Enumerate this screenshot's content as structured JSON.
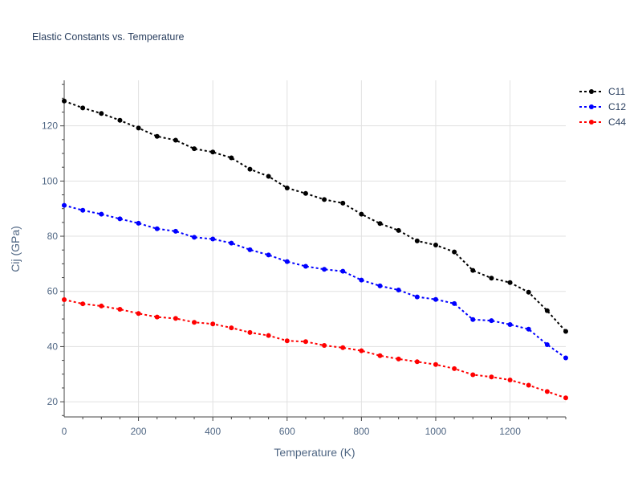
{
  "chart_data": {
    "type": "line",
    "title": "Elastic Constants vs. Temperature",
    "xlabel": "Temperature (K)",
    "ylabel": "Cij (GPa)",
    "xlim": [
      0,
      1350
    ],
    "ylim": [
      14.5,
      136.5
    ],
    "xticks": [
      0,
      200,
      400,
      600,
      800,
      1000,
      1200
    ],
    "yticks": [
      20,
      40,
      60,
      80,
      100,
      120
    ],
    "grid": true,
    "legend_position": "top-right",
    "series": [
      {
        "name": "C11",
        "color": "#000000",
        "x": [
          0,
          50,
          100,
          150,
          200,
          250,
          300,
          350,
          400,
          450,
          500,
          550,
          600,
          650,
          700,
          750,
          800,
          850,
          900,
          950,
          1000,
          1050,
          1100,
          1150,
          1200,
          1250,
          1300,
          1350
        ],
        "y": [
          129.0,
          126.5,
          124.5,
          122.0,
          119.2,
          116.2,
          114.8,
          111.7,
          110.5,
          108.4,
          104.3,
          101.7,
          97.5,
          95.5,
          93.3,
          92.0,
          88.0,
          84.6,
          82.1,
          78.3,
          76.8,
          74.3,
          67.6,
          64.8,
          63.2,
          59.7,
          53.0,
          45.5
        ]
      },
      {
        "name": "C12",
        "color": "#0000ff",
        "x": [
          0,
          50,
          100,
          150,
          200,
          250,
          300,
          350,
          400,
          450,
          500,
          550,
          600,
          650,
          700,
          750,
          800,
          850,
          900,
          950,
          1000,
          1050,
          1100,
          1150,
          1200,
          1250,
          1300,
          1350
        ],
        "y": [
          91.2,
          89.4,
          88.0,
          86.3,
          84.7,
          82.7,
          81.8,
          79.6,
          79.0,
          77.5,
          75.1,
          73.2,
          70.8,
          69.1,
          68.0,
          67.3,
          64.1,
          62.0,
          60.5,
          58.0,
          57.1,
          55.6,
          49.8,
          49.4,
          48.0,
          46.3,
          40.7,
          35.9
        ]
      },
      {
        "name": "C44",
        "color": "#ff0000",
        "x": [
          0,
          50,
          100,
          150,
          200,
          250,
          300,
          350,
          400,
          450,
          500,
          550,
          600,
          650,
          700,
          750,
          800,
          850,
          900,
          950,
          1000,
          1050,
          1100,
          1150,
          1200,
          1250,
          1300,
          1350
        ],
        "y": [
          57.0,
          55.5,
          54.7,
          53.5,
          52.0,
          50.7,
          50.2,
          48.8,
          48.2,
          46.8,
          45.1,
          44.0,
          42.1,
          41.8,
          40.4,
          39.6,
          38.5,
          36.7,
          35.5,
          34.5,
          33.5,
          32.0,
          29.8,
          29.0,
          27.9,
          26.0,
          23.7,
          21.4
        ]
      }
    ]
  }
}
